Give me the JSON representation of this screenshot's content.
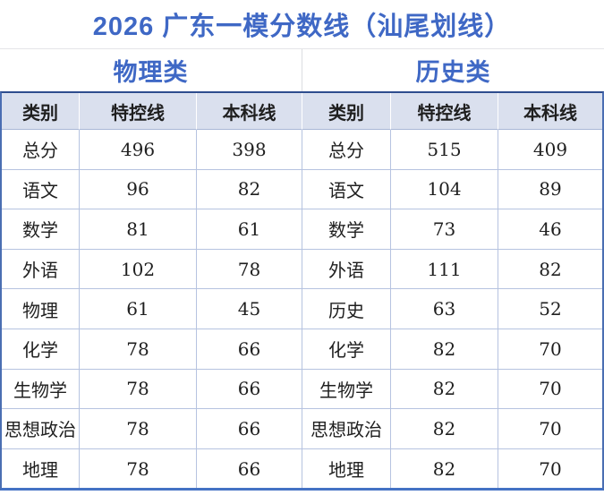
{
  "title": "2026 广东一模分数线（汕尾划线）",
  "section_headers": [
    "物理类",
    "历史类"
  ],
  "columns": [
    "类别",
    "特控线",
    "本科线",
    "类别",
    "特控线",
    "本科线"
  ],
  "rows": [
    [
      "总分",
      "496",
      "398",
      "总分",
      "515",
      "409"
    ],
    [
      "语文",
      "96",
      "82",
      "语文",
      "104",
      "89"
    ],
    [
      "数学",
      "81",
      "61",
      "数学",
      "73",
      "46"
    ],
    [
      "外语",
      "102",
      "78",
      "外语",
      "111",
      "82"
    ],
    [
      "物理",
      "61",
      "45",
      "历史",
      "63",
      "52"
    ],
    [
      "化学",
      "78",
      "66",
      "化学",
      "82",
      "70"
    ],
    [
      "生物学",
      "78",
      "66",
      "生物学",
      "82",
      "70"
    ],
    [
      "思想政治",
      "78",
      "66",
      "思想政治",
      "82",
      "70"
    ],
    [
      "地理",
      "78",
      "66",
      "地理",
      "82",
      "70"
    ]
  ],
  "chart_data": {
    "type": "table",
    "title": "2026 广东一模分数线（汕尾划线）",
    "groups": [
      {
        "name": "物理类",
        "columns": [
          "类别",
          "特控线",
          "本科线"
        ],
        "rows": [
          [
            "总分",
            496,
            398
          ],
          [
            "语文",
            96,
            82
          ],
          [
            "数学",
            81,
            61
          ],
          [
            "外语",
            102,
            78
          ],
          [
            "物理",
            61,
            45
          ],
          [
            "化学",
            78,
            66
          ],
          [
            "生物学",
            78,
            66
          ],
          [
            "思想政治",
            78,
            66
          ],
          [
            "地理",
            78,
            66
          ]
        ]
      },
      {
        "name": "历史类",
        "columns": [
          "类别",
          "特控线",
          "本科线"
        ],
        "rows": [
          [
            "总分",
            515,
            409
          ],
          [
            "语文",
            104,
            89
          ],
          [
            "数学",
            73,
            46
          ],
          [
            "外语",
            111,
            82
          ],
          [
            "历史",
            63,
            52
          ],
          [
            "化学",
            82,
            70
          ],
          [
            "生物学",
            82,
            70
          ],
          [
            "思想政治",
            82,
            70
          ],
          [
            "地理",
            82,
            70
          ]
        ]
      }
    ]
  },
  "colors": {
    "accent_blue": "#3F68C5",
    "header_row_bg": "#DAE0EE",
    "grid_line": "#B6C3E0",
    "outer_border_top": "#2E4D8E",
    "outer_border_bottom": "#4472C4",
    "text": "#1F1F1F"
  }
}
